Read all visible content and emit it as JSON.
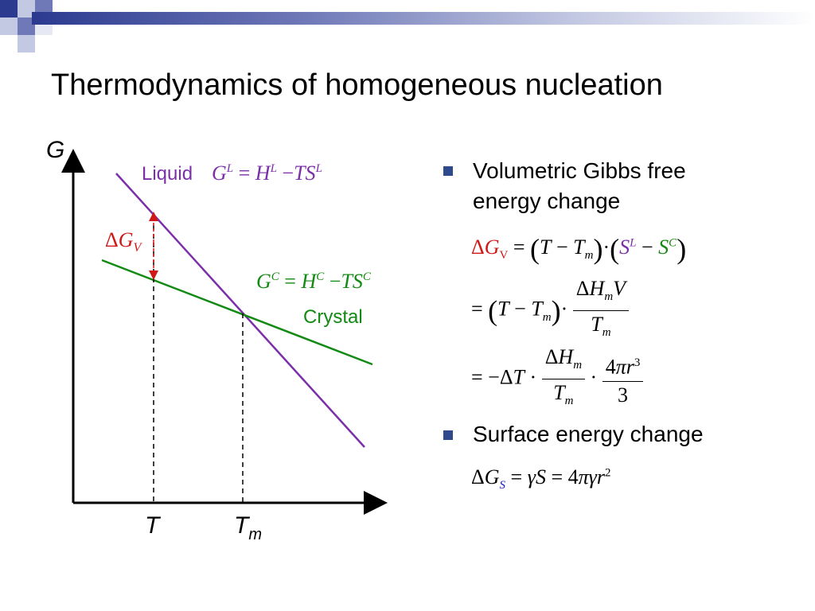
{
  "title": "Thermodynamics of homogeneous nucleation",
  "diagram": {
    "y_axis_label": "G",
    "x_tick_T": "T",
    "x_tick_Tm_main": "T",
    "x_tick_Tm_sub": "m",
    "liquid_label": "Liquid",
    "liquid_eq": "G^L = H^L − TS^L",
    "crystal_label": "Crystal",
    "crystal_eq": "G^C = H^C − TS^C",
    "delta_gv_label": "ΔG_V",
    "colors": {
      "liquid": "#7b2fa8",
      "crystal": "#138a13",
      "delta": "#d01818"
    }
  },
  "bullets": [
    {
      "text": "Volumetric Gibbs free energy change"
    },
    {
      "text": "Surface energy change"
    }
  ],
  "equations": {
    "gv_line1": "ΔG_V = (T − T_m) · (S^L − S^C)",
    "gv_line2": "= (T − T_m) · ΔH_m V / T_m",
    "gv_line3": "= −ΔT · ΔH_m / T_m · 4πr³ / 3",
    "gs_line": "ΔG_S = γS = 4πγr²"
  }
}
